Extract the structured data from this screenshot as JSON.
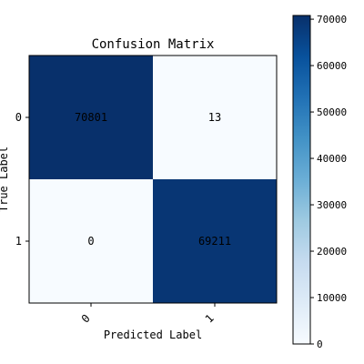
{
  "chart_data": {
    "type": "heatmap",
    "title": "Confusion Matrix",
    "xlabel": "Predicted Label",
    "ylabel": "True Label",
    "x_categories": [
      "0",
      "1"
    ],
    "y_categories": [
      "0",
      "1"
    ],
    "matrix": [
      [
        70801,
        13
      ],
      [
        0,
        69211
      ]
    ],
    "cell_labels": [
      [
        "70801",
        "13"
      ],
      [
        "0",
        "69211"
      ]
    ],
    "colormap": "Blues",
    "colorbar": {
      "range": [
        0,
        70801
      ],
      "ticks": [
        0,
        10000,
        20000,
        30000,
        40000,
        50000,
        60000,
        70000
      ],
      "tick_labels": [
        "0",
        "10000",
        "20000",
        "30000",
        "40000",
        "50000",
        "60000",
        "70000"
      ]
    },
    "colors": {
      "low": "#f7fbff",
      "high": "#08306b",
      "text_on_dark": "#ffffff",
      "text_on_light": "#000000"
    }
  }
}
